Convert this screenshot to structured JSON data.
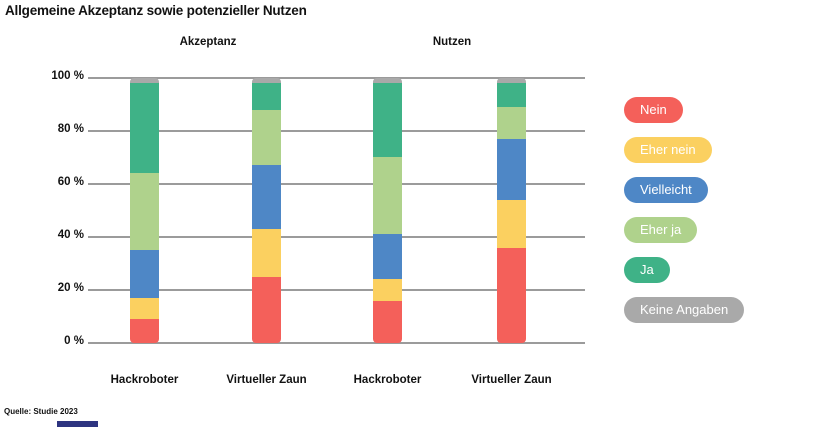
{
  "chart": {
    "title": "Allgemeine Akzeptanz sowie potenzieller Nutzen"
  },
  "footer": {
    "source": "Quelle: Studie 2023"
  },
  "chart_data": {
    "type": "bar",
    "subtype": "stacked-percent",
    "title": "Allgemeine Akzeptanz sowie potenzieller Nutzen",
    "groups": [
      "Akzeptanz",
      "Nutzen"
    ],
    "categories": [
      "Hackroboter",
      "Virtueller Zaun",
      "Hackroboter",
      "Virtueller Zaun"
    ],
    "series": [
      {
        "name": "Nein",
        "color": "#f4605a",
        "values": [
          9,
          25,
          16,
          36
        ]
      },
      {
        "name": "Eher nein",
        "color": "#fbd060",
        "values": [
          8,
          18,
          8,
          18
        ]
      },
      {
        "name": "Vielleicht",
        "color": "#4e87c6",
        "values": [
          18,
          24,
          17,
          23
        ]
      },
      {
        "name": "Eher ja",
        "color": "#afd28c",
        "values": [
          29,
          21,
          29,
          12
        ]
      },
      {
        "name": "Ja",
        "color": "#3fb287",
        "values": [
          34,
          10,
          28,
          9
        ]
      },
      {
        "name": "Keine Angaben",
        "color": "#a9a9a9",
        "values": [
          2,
          2,
          2,
          2
        ]
      }
    ],
    "stack_order_top_to_bottom": [
      "Keine Angaben",
      "Ja",
      "Eher ja",
      "Vielleicht",
      "Eher nein",
      "Nein"
    ],
    "ylim": [
      0,
      100
    ],
    "yticks": [
      0,
      20,
      40,
      60,
      80,
      100
    ],
    "ytick_labels": [
      "0 %",
      "20 %",
      "40 %",
      "60 %",
      "80 %",
      "100 %"
    ],
    "grid": "horizontal",
    "gridline_color": "#9b9b9b",
    "legend_position": "right",
    "legend_text_color": "#ffffff"
  }
}
